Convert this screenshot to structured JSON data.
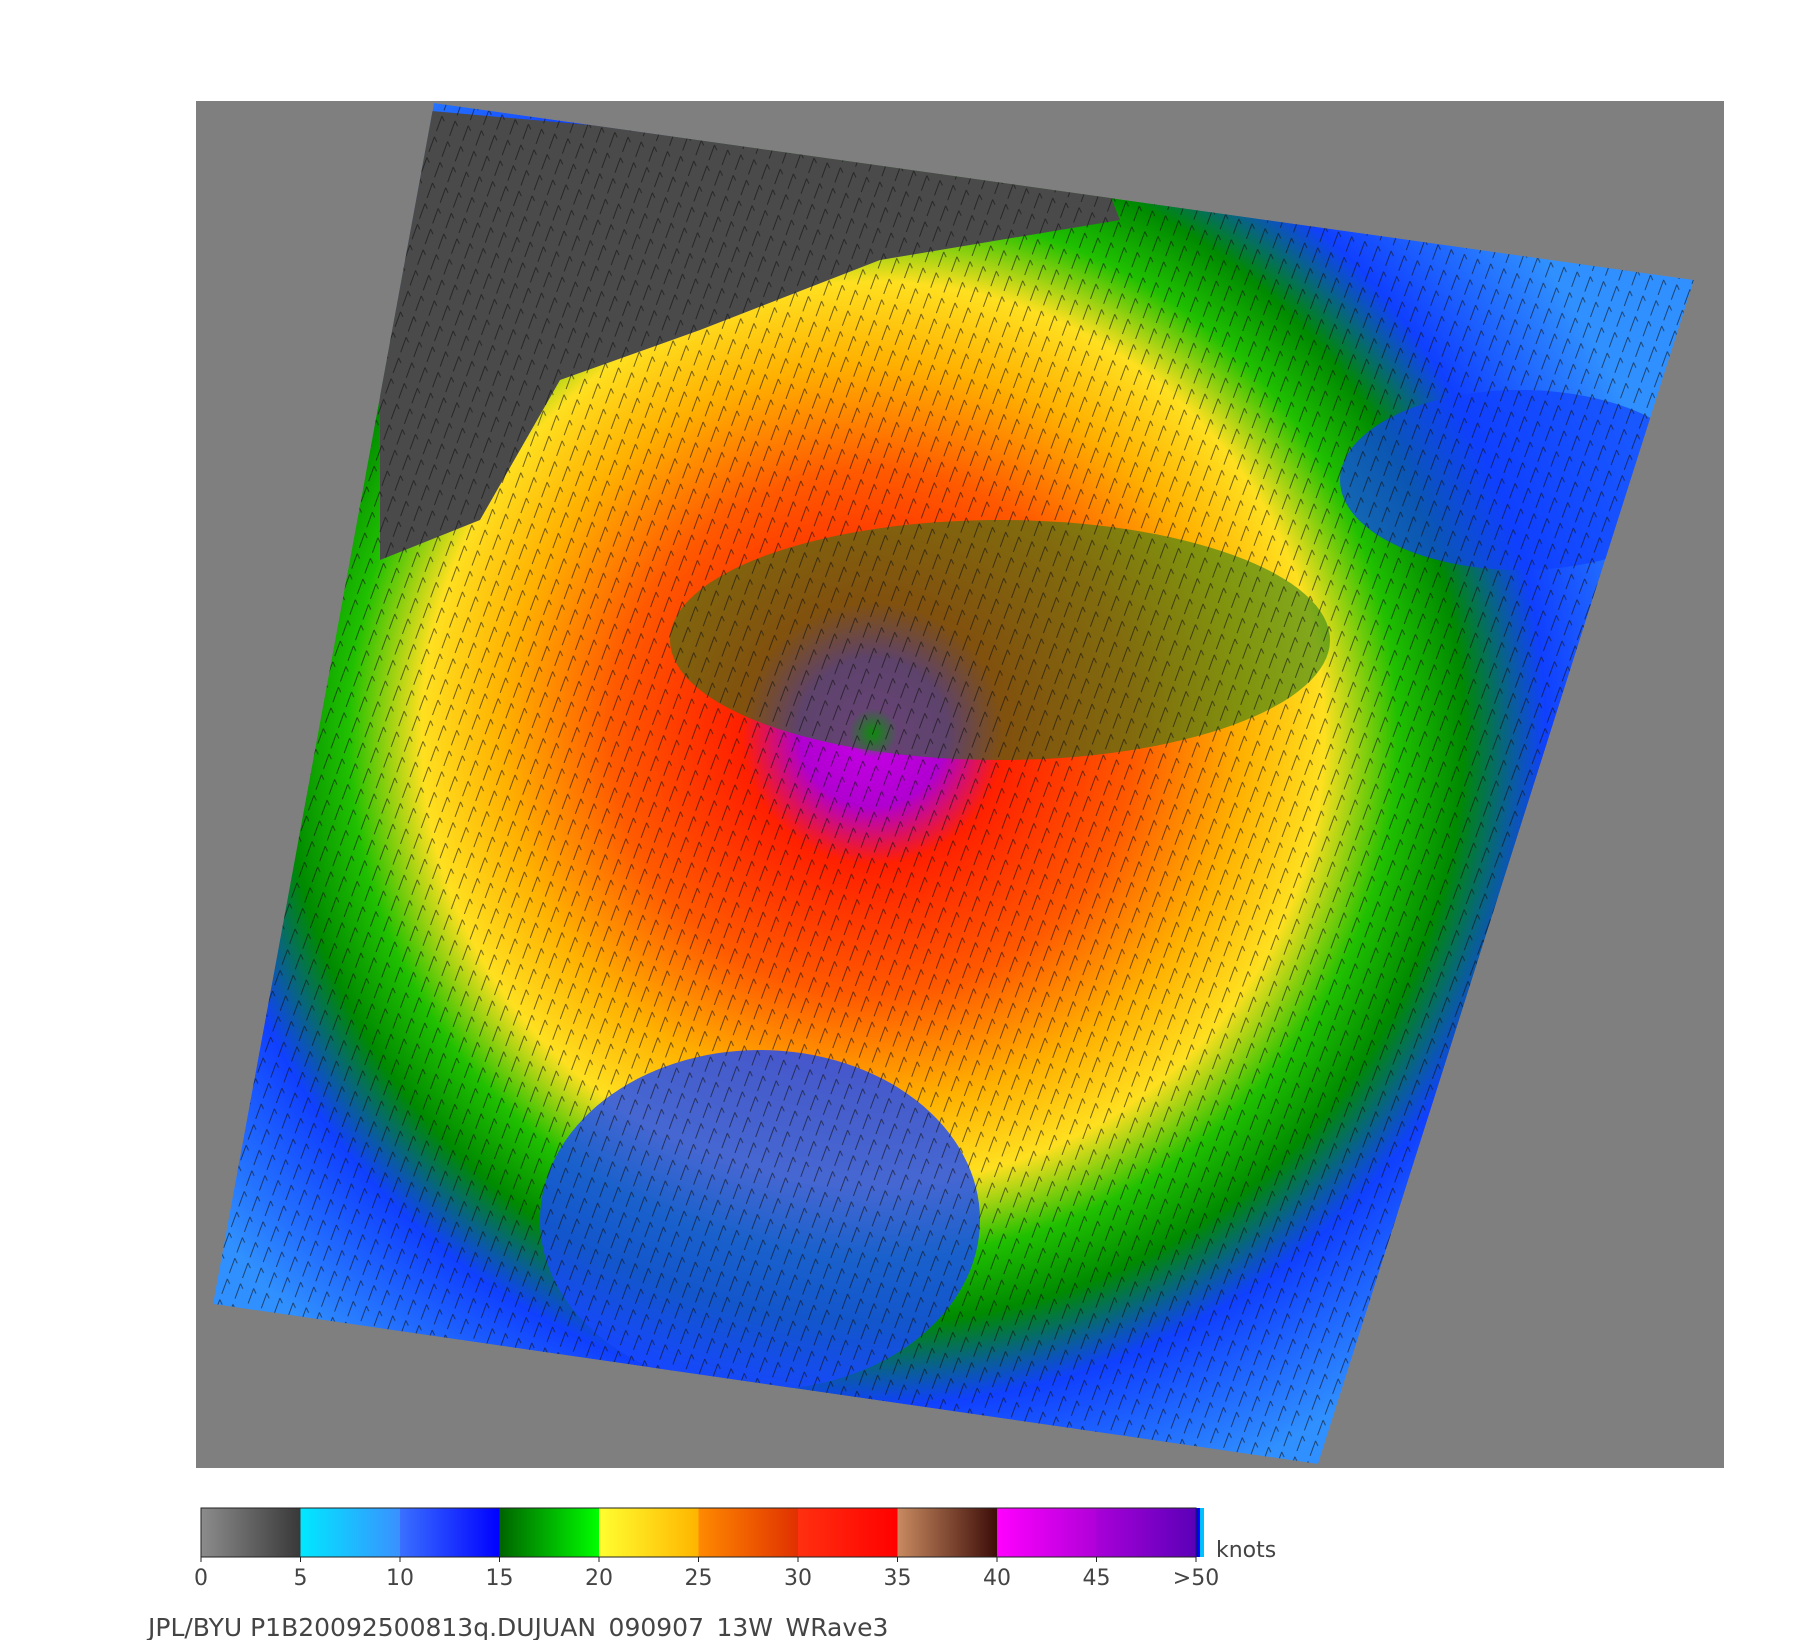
{
  "colorbar": {
    "unit": "knots",
    "range": [
      0,
      50
    ],
    "ticks": [
      0,
      5,
      10,
      15,
      20,
      25,
      30,
      35,
      40,
      45,
      {
        "value": 50,
        "label": ">50"
      }
    ],
    "bands": [
      [
        "#8c8c8c",
        "#383838"
      ],
      [
        "#00e8ff",
        "#3a90ff"
      ],
      [
        "#3a70ff",
        "#0000ff"
      ],
      [
        "#006400",
        "#00ff00"
      ],
      [
        "#ffff30",
        "#ffb400"
      ],
      [
        "#ff8a00",
        "#e03000"
      ],
      [
        "#ff3010",
        "#ff0000"
      ],
      [
        "#c88a60",
        "#3c0c08"
      ],
      [
        "#ff00ff",
        "#b000d8"
      ],
      [
        "#a800d8",
        "#5a00b8"
      ]
    ]
  },
  "footer": "JPL/BYU  P1B20092500813q.DUJUAN_090907_13W_WRave3"
}
